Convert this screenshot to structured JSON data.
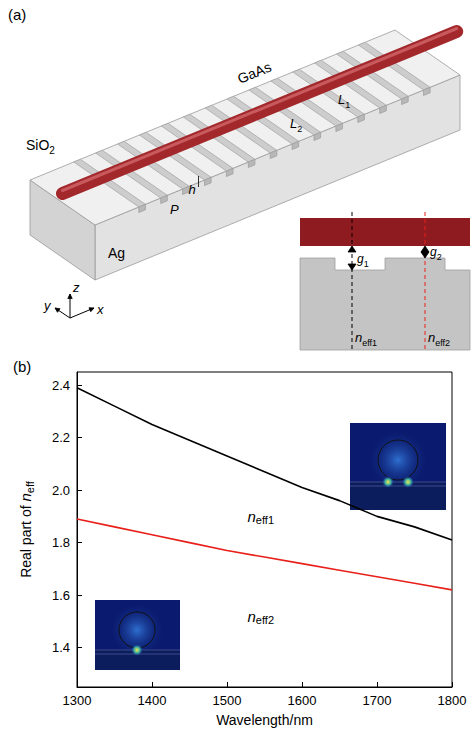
{
  "diagram": {
    "panel": "(a)",
    "labels": {
      "cladding": "SiO2",
      "wire": "GaAs",
      "metal": "Ag",
      "depth": "h",
      "period": "P",
      "width1": "L1",
      "width2": "L2",
      "axes": [
        "x",
        "y",
        "z"
      ]
    },
    "cross_section": {
      "gaps": [
        "g1",
        "g2"
      ],
      "indices": [
        "neff1",
        "neff2"
      ]
    }
  },
  "chart_data": {
    "type": "line",
    "title": "(b)",
    "x_label": "Wavelength/nm",
    "y_label": "Real part of neff",
    "x": [
      1300,
      1350,
      1400,
      1450,
      1500,
      1550,
      1600,
      1650,
      1700,
      1750,
      1800
    ],
    "series": [
      {
        "name": "neff1",
        "color": "#000000",
        "values": [
          2.39,
          2.32,
          2.25,
          2.19,
          2.13,
          2.07,
          2.01,
          1.96,
          1.9,
          1.86,
          1.81
        ]
      },
      {
        "name": "neff2",
        "color": "#e8201a",
        "values": [
          1.89,
          1.86,
          1.83,
          1.8,
          1.77,
          1.745,
          1.72,
          1.695,
          1.67,
          1.645,
          1.62
        ]
      }
    ],
    "marker": "none",
    "xlim": [
      1300,
      1800
    ],
    "xticks": [
      1300,
      1400,
      1500,
      1600,
      1700,
      1800
    ],
    "ylim": [
      1.25,
      2.45
    ],
    "yticks": [
      1.4,
      1.6,
      1.8,
      {
        "value": 2,
        "label": "2.0"
      },
      2.2,
      2.4
    ],
    "grid": false,
    "annotations": [
      {
        "text": "neff1",
        "x": 1545,
        "y": 1.9
      },
      {
        "text": "neff2",
        "x": 1545,
        "y": 1.52
      }
    ]
  }
}
